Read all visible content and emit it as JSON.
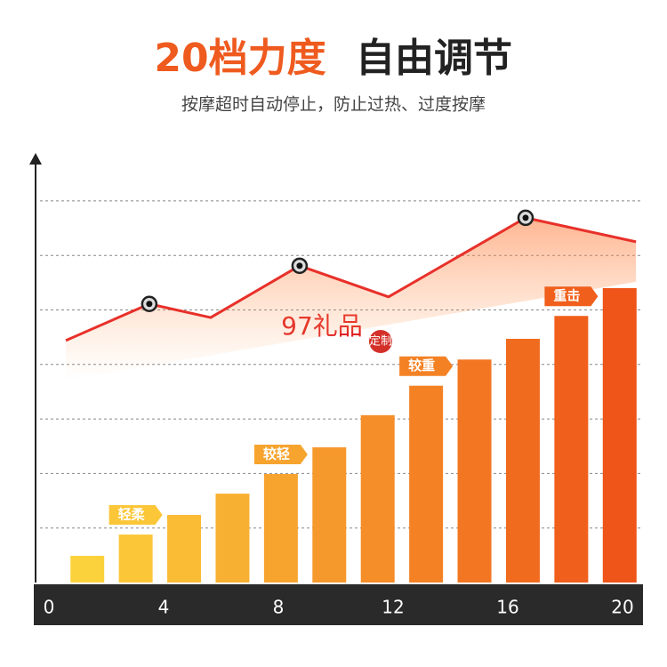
{
  "chart_data": {
    "type": "bar",
    "title_highlight": "20档力度",
    "title": "自由调节",
    "subtitle": "按摩超时自动停止，防止过热、过度按摩",
    "categories": [
      null,
      null,
      null,
      null,
      null,
      null,
      null,
      null,
      null,
      null,
      null,
      null
    ],
    "values": [
      0.49,
      0.88,
      1.24,
      1.63,
      1.99,
      2.48,
      3.07,
      3.61,
      4.09,
      4.47,
      4.89,
      5.4
    ],
    "color_start": "#fcd23c",
    "color_end": "#ef5418",
    "ylim": [
      0,
      8
    ],
    "grid_values": [
      1,
      2,
      3,
      4,
      5,
      6,
      7
    ],
    "xlim": [
      0,
      20
    ],
    "xticks": [
      0,
      4,
      8,
      12,
      16,
      20
    ],
    "annotations": [
      "轻柔",
      "较轻",
      "较重",
      "重击"
    ],
    "trend": {
      "x": [
        0.59,
        3.5,
        5.64,
        8.74,
        11.84,
        16.62,
        20.47
      ],
      "values": [
        4.44,
        5.11,
        4.86,
        5.81,
        5.24,
        6.69,
        6.25
      ],
      "color": "#e8302a"
    },
    "watermark": "97礼品",
    "stamp": "定制"
  }
}
